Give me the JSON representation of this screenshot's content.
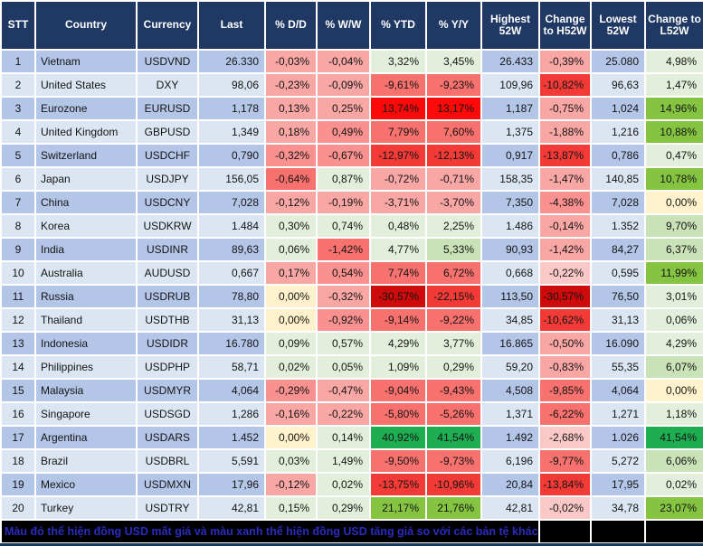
{
  "chart_data": {
    "type": "table",
    "title": "Currency performance vs USD (52-week table)",
    "header_bg": "#1F3864",
    "stripes": {
      "odd": "#B4C6E7",
      "even": "#DCE6F2"
    },
    "palette": {
      "y": "#FFF2CC",
      "g1": "#E3EFDA",
      "g2": "#C9E2B7",
      "g3": "#85C441",
      "g4": "#1FAD52",
      "r0": "#FAC8C6",
      "r1": "#F8A7A5",
      "r15": "#F89190",
      "r2": "#F7716E",
      "r3": "#F23B37",
      "r4": "#FC0A0A",
      "r5": "#CE0B0B"
    },
    "columns": [
      "STT",
      "Country",
      "Currency",
      "Last",
      "% D/D",
      "% W/W",
      "% YTD",
      "% Y/Y",
      "Highest 52W",
      "Change to H52W",
      "Lowest 52W",
      "Change to L52W"
    ],
    "rows": [
      {
        "stt": "1",
        "country": "Vietnam",
        "currency": "USDVND",
        "last": "26.330",
        "dd": [
          "-0,03%",
          "r1"
        ],
        "ww": [
          "-0,04%",
          "r1"
        ],
        "ytd": [
          "3,32%",
          "g1"
        ],
        "yy": [
          "3,45%",
          "g1"
        ],
        "h52": "26.433",
        "ch52": [
          "-0,39%",
          "r1"
        ],
        "l52": "25.080",
        "cl52": [
          "4,98%",
          "g1"
        ]
      },
      {
        "stt": "2",
        "country": "United States",
        "currency": "DXY",
        "last": "98,06",
        "dd": [
          "-0,23%",
          "r1"
        ],
        "ww": [
          "-0,09%",
          "r1"
        ],
        "ytd": [
          "-9,61%",
          "r2"
        ],
        "yy": [
          "-9,23%",
          "r2"
        ],
        "h52": "109,96",
        "ch52": [
          "-10,82%",
          "r3"
        ],
        "l52": "96,63",
        "cl52": [
          "1,47%",
          "g1"
        ]
      },
      {
        "stt": "3",
        "country": "Eurozone",
        "currency": "EURUSD",
        "last": "1,178",
        "dd": [
          "0,13%",
          "r1"
        ],
        "ww": [
          "0,25%",
          "r1"
        ],
        "ytd": [
          "13,74%",
          "r4"
        ],
        "yy": [
          "13,17%",
          "r4"
        ],
        "h52": "1,187",
        "ch52": [
          "-0,75%",
          "r1"
        ],
        "l52": "1,024",
        "cl52": [
          "14,96%",
          "g3"
        ]
      },
      {
        "stt": "4",
        "country": "United Kingdom",
        "currency": "GBPUSD",
        "last": "1,349",
        "dd": [
          "0,18%",
          "r1"
        ],
        "ww": [
          "0,49%",
          "r15"
        ],
        "ytd": [
          "7,79%",
          "r2"
        ],
        "yy": [
          "7,60%",
          "r2"
        ],
        "h52": "1,375",
        "ch52": [
          "-1,88%",
          "r1"
        ],
        "l52": "1,216",
        "cl52": [
          "10,88%",
          "g3"
        ]
      },
      {
        "stt": "5",
        "country": "Switzerland",
        "currency": "USDCHF",
        "last": "0,790",
        "dd": [
          "-0,32%",
          "r15"
        ],
        "ww": [
          "-0,67%",
          "r15"
        ],
        "ytd": [
          "-12,97%",
          "r3"
        ],
        "yy": [
          "-12,13%",
          "r3"
        ],
        "h52": "0,917",
        "ch52": [
          "-13,87%",
          "r3"
        ],
        "l52": "0,786",
        "cl52": [
          "0,47%",
          "g1"
        ]
      },
      {
        "stt": "6",
        "country": "Japan",
        "currency": "USDJPY",
        "last": "156,05",
        "dd": [
          "-0,64%",
          "r2"
        ],
        "ww": [
          "0,87%",
          "g1"
        ],
        "ytd": [
          "-0,72%",
          "r1"
        ],
        "yy": [
          "-0,71%",
          "r1"
        ],
        "h52": "158,35",
        "ch52": [
          "-1,47%",
          "r1"
        ],
        "l52": "140,85",
        "cl52": [
          "10,78%",
          "g3"
        ]
      },
      {
        "stt": "7",
        "country": "China",
        "currency": "USDCNY",
        "last": "7,028",
        "dd": [
          "-0,12%",
          "r1"
        ],
        "ww": [
          "-0,19%",
          "r1"
        ],
        "ytd": [
          "-3,71%",
          "r1"
        ],
        "yy": [
          "-3,70%",
          "r1"
        ],
        "h52": "7,350",
        "ch52": [
          "-4,38%",
          "r15"
        ],
        "l52": "7,028",
        "cl52": [
          "0,00%",
          "y"
        ]
      },
      {
        "stt": "8",
        "country": "Korea",
        "currency": "USDKRW",
        "last": "1.484",
        "dd": [
          "0,30%",
          "g1"
        ],
        "ww": [
          "0,74%",
          "g1"
        ],
        "ytd": [
          "0,48%",
          "g1"
        ],
        "yy": [
          "2,25%",
          "g1"
        ],
        "h52": "1.486",
        "ch52": [
          "-0,14%",
          "r1"
        ],
        "l52": "1.352",
        "cl52": [
          "9,70%",
          "g2"
        ]
      },
      {
        "stt": "9",
        "country": "India",
        "currency": "USDINR",
        "last": "89,63",
        "dd": [
          "0,06%",
          "g1"
        ],
        "ww": [
          "-1,42%",
          "r2"
        ],
        "ytd": [
          "4,77%",
          "g1"
        ],
        "yy": [
          "5,33%",
          "g2"
        ],
        "h52": "90,93",
        "ch52": [
          "-1,42%",
          "r1"
        ],
        "l52": "84,27",
        "cl52": [
          "6,37%",
          "g2"
        ]
      },
      {
        "stt": "10",
        "country": "Australia",
        "currency": "AUDUSD",
        "last": "0,667",
        "dd": [
          "0,17%",
          "r1"
        ],
        "ww": [
          "0,54%",
          "r15"
        ],
        "ytd": [
          "7,74%",
          "r2"
        ],
        "yy": [
          "6,72%",
          "r2"
        ],
        "h52": "0,668",
        "ch52": [
          "-0,22%",
          "r0"
        ],
        "l52": "0,595",
        "cl52": [
          "11,99%",
          "g3"
        ]
      },
      {
        "stt": "11",
        "country": "Russia",
        "currency": "USDRUB",
        "last": "78,80",
        "dd": [
          "0,00%",
          "y"
        ],
        "ww": [
          "-0,32%",
          "r1"
        ],
        "ytd": [
          "-30,57%",
          "r5"
        ],
        "yy": [
          "-22,15%",
          "r3"
        ],
        "h52": "113,50",
        "ch52": [
          "-30,57%",
          "r5"
        ],
        "l52": "76,50",
        "cl52": [
          "3,01%",
          "g1"
        ]
      },
      {
        "stt": "12",
        "country": "Thailand",
        "currency": "USDTHB",
        "last": "31,13",
        "dd": [
          "0,00%",
          "y"
        ],
        "ww": [
          "-0,92%",
          "r15"
        ],
        "ytd": [
          "-9,14%",
          "r2"
        ],
        "yy": [
          "-9,22%",
          "r2"
        ],
        "h52": "34,85",
        "ch52": [
          "-10,62%",
          "r3"
        ],
        "l52": "31,13",
        "cl52": [
          "0,06%",
          "g1"
        ]
      },
      {
        "stt": "13",
        "country": "Indonesia",
        "currency": "USDIDR",
        "last": "16.780",
        "dd": [
          "0,09%",
          "g1"
        ],
        "ww": [
          "0,57%",
          "g1"
        ],
        "ytd": [
          "4,29%",
          "g1"
        ],
        "yy": [
          "3,77%",
          "g1"
        ],
        "h52": "16.865",
        "ch52": [
          "-0,50%",
          "r1"
        ],
        "l52": "16.090",
        "cl52": [
          "4,29%",
          "g1"
        ]
      },
      {
        "stt": "14",
        "country": "Philippines",
        "currency": "USDPHP",
        "last": "58,71",
        "dd": [
          "0,02%",
          "g1"
        ],
        "ww": [
          "0,05%",
          "g1"
        ],
        "ytd": [
          "1,09%",
          "g1"
        ],
        "yy": [
          "0,29%",
          "g1"
        ],
        "h52": "59,20",
        "ch52": [
          "-0,83%",
          "r1"
        ],
        "l52": "55,35",
        "cl52": [
          "6,07%",
          "g2"
        ]
      },
      {
        "stt": "15",
        "country": "Malaysia",
        "currency": "USDMYR",
        "last": "4,064",
        "dd": [
          "-0,29%",
          "r15"
        ],
        "ww": [
          "-0,47%",
          "r1"
        ],
        "ytd": [
          "-9,04%",
          "r2"
        ],
        "yy": [
          "-9,43%",
          "r2"
        ],
        "h52": "4,508",
        "ch52": [
          "-9,85%",
          "r2"
        ],
        "l52": "4,064",
        "cl52": [
          "0,00%",
          "y"
        ]
      },
      {
        "stt": "16",
        "country": "Singapore",
        "currency": "USDSGD",
        "last": "1,286",
        "dd": [
          "-0,16%",
          "r1"
        ],
        "ww": [
          "-0,22%",
          "r1"
        ],
        "ytd": [
          "-5,80%",
          "r2"
        ],
        "yy": [
          "-5,26%",
          "r2"
        ],
        "h52": "1,371",
        "ch52": [
          "-6,22%",
          "r2"
        ],
        "l52": "1,271",
        "cl52": [
          "1,18%",
          "g1"
        ]
      },
      {
        "stt": "17",
        "country": "Argentina",
        "currency": "USDARS",
        "last": "1.452",
        "dd": [
          "0,00%",
          "y"
        ],
        "ww": [
          "0,14%",
          "g1"
        ],
        "ytd": [
          "40,92%",
          "g4"
        ],
        "yy": [
          "41,54%",
          "g4"
        ],
        "h52": "1.492",
        "ch52": [
          "-2,68%",
          "r0"
        ],
        "l52": "1.026",
        "cl52": [
          "41,54%",
          "g4"
        ]
      },
      {
        "stt": "18",
        "country": "Brazil",
        "currency": "USDBRL",
        "last": "5,591",
        "dd": [
          "0,03%",
          "g1"
        ],
        "ww": [
          "1,49%",
          "g1"
        ],
        "ytd": [
          "-9,50%",
          "r2"
        ],
        "yy": [
          "-9,73%",
          "r2"
        ],
        "h52": "6,196",
        "ch52": [
          "-9,77%",
          "r2"
        ],
        "l52": "5,272",
        "cl52": [
          "6,06%",
          "g2"
        ]
      },
      {
        "stt": "19",
        "country": "Mexico",
        "currency": "USDMXN",
        "last": "17,96",
        "dd": [
          "-0,12%",
          "r1"
        ],
        "ww": [
          "0,02%",
          "g1"
        ],
        "ytd": [
          "-13,75%",
          "r3"
        ],
        "yy": [
          "-10,96%",
          "r3"
        ],
        "h52": "20,84",
        "ch52": [
          "-13,84%",
          "r3"
        ],
        "l52": "17,95",
        "cl52": [
          "0,02%",
          "g1"
        ]
      },
      {
        "stt": "20",
        "country": "Turkey",
        "currency": "USDTRY",
        "last": "42,81",
        "dd": [
          "0,15%",
          "g1"
        ],
        "ww": [
          "0,29%",
          "g1"
        ],
        "ytd": [
          "21,17%",
          "g3"
        ],
        "yy": [
          "21,76%",
          "g3"
        ],
        "h52": "42,81",
        "ch52": [
          "-0,02%",
          "r0"
        ],
        "l52": "34,78",
        "cl52": [
          "23,07%",
          "g3"
        ]
      }
    ],
    "note": "Màu đỏ thể hiện đồng USD mất giá và màu xanh thể hiện đồng USD tăng giá so với các bản tệ khác.",
    "note_color": "#2B2BBE",
    "note_bg": "#000000"
  }
}
